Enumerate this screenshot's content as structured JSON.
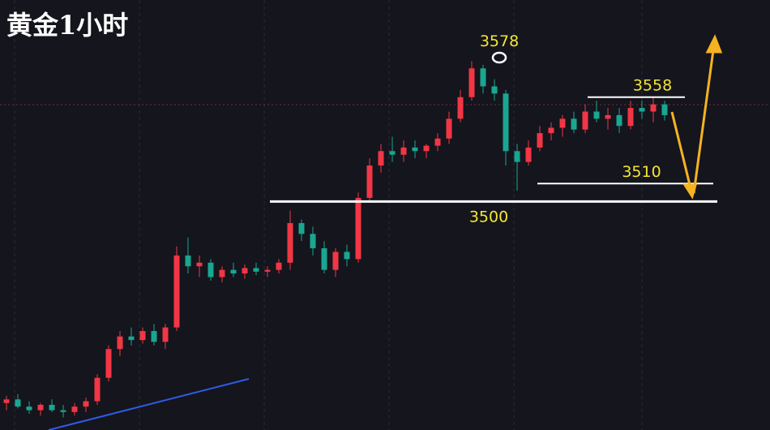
{
  "chart_data": {
    "type": "candlestick",
    "title": "黄金1小时",
    "up_color": "#f23645",
    "down_color": "#1aa690",
    "ylim": [
      3373,
      3612
    ],
    "candles": [
      [
        3388,
        3392,
        3384,
        3390
      ],
      [
        3390,
        3393,
        3385,
        3386
      ],
      [
        3386,
        3389,
        3382,
        3384
      ],
      [
        3384,
        3388,
        3381,
        3387
      ],
      [
        3387,
        3390,
        3383,
        3384
      ],
      [
        3384,
        3387,
        3380,
        3383
      ],
      [
        3383,
        3388,
        3381,
        3386
      ],
      [
        3386,
        3391,
        3383,
        3389
      ],
      [
        3389,
        3404,
        3387,
        3402
      ],
      [
        3402,
        3420,
        3400,
        3418
      ],
      [
        3418,
        3428,
        3414,
        3425
      ],
      [
        3425,
        3430,
        3420,
        3423
      ],
      [
        3423,
        3430,
        3421,
        3428
      ],
      [
        3428,
        3432,
        3420,
        3422
      ],
      [
        3422,
        3432,
        3418,
        3430
      ],
      [
        3430,
        3475,
        3428,
        3470
      ],
      [
        3470,
        3480,
        3460,
        3464
      ],
      [
        3464,
        3470,
        3458,
        3466
      ],
      [
        3466,
        3468,
        3456,
        3458
      ],
      [
        3458,
        3464,
        3455,
        3462
      ],
      [
        3462,
        3466,
        3458,
        3460
      ],
      [
        3460,
        3465,
        3457,
        3463
      ],
      [
        3463,
        3466,
        3459,
        3461
      ],
      [
        3461,
        3464,
        3458,
        3462
      ],
      [
        3462,
        3468,
        3460,
        3466
      ],
      [
        3466,
        3495,
        3462,
        3488
      ],
      [
        3488,
        3490,
        3478,
        3482
      ],
      [
        3482,
        3486,
        3470,
        3474
      ],
      [
        3474,
        3478,
        3460,
        3462
      ],
      [
        3462,
        3474,
        3458,
        3472
      ],
      [
        3472,
        3476,
        3464,
        3468
      ],
      [
        3468,
        3505,
        3466,
        3502
      ],
      [
        3502,
        3524,
        3500,
        3520
      ],
      [
        3520,
        3532,
        3516,
        3528
      ],
      [
        3528,
        3536,
        3522,
        3526
      ],
      [
        3526,
        3534,
        3522,
        3530
      ],
      [
        3530,
        3534,
        3524,
        3528
      ],
      [
        3528,
        3532,
        3524,
        3531
      ],
      [
        3531,
        3538,
        3528,
        3535
      ],
      [
        3535,
        3550,
        3532,
        3546
      ],
      [
        3546,
        3562,
        3544,
        3558
      ],
      [
        3558,
        3578,
        3556,
        3574
      ],
      [
        3574,
        3576,
        3560,
        3564
      ],
      [
        3564,
        3568,
        3556,
        3560
      ],
      [
        3560,
        3562,
        3520,
        3528
      ],
      [
        3528,
        3532,
        3506,
        3522
      ],
      [
        3522,
        3534,
        3520,
        3530
      ],
      [
        3530,
        3542,
        3528,
        3538
      ],
      [
        3538,
        3544,
        3534,
        3541
      ],
      [
        3541,
        3548,
        3536,
        3546
      ],
      [
        3546,
        3550,
        3538,
        3540
      ],
      [
        3540,
        3554,
        3538,
        3550
      ],
      [
        3550,
        3556,
        3544,
        3546
      ],
      [
        3546,
        3552,
        3540,
        3548
      ],
      [
        3548,
        3552,
        3538,
        3542
      ],
      [
        3542,
        3556,
        3540,
        3552
      ],
      [
        3552,
        3556,
        3546,
        3550
      ],
      [
        3550,
        3558,
        3544,
        3554
      ],
      [
        3554,
        3556,
        3545,
        3548
      ]
    ],
    "peak": 3578,
    "levels": [
      3500,
      3510,
      3558
    ]
  }
}
